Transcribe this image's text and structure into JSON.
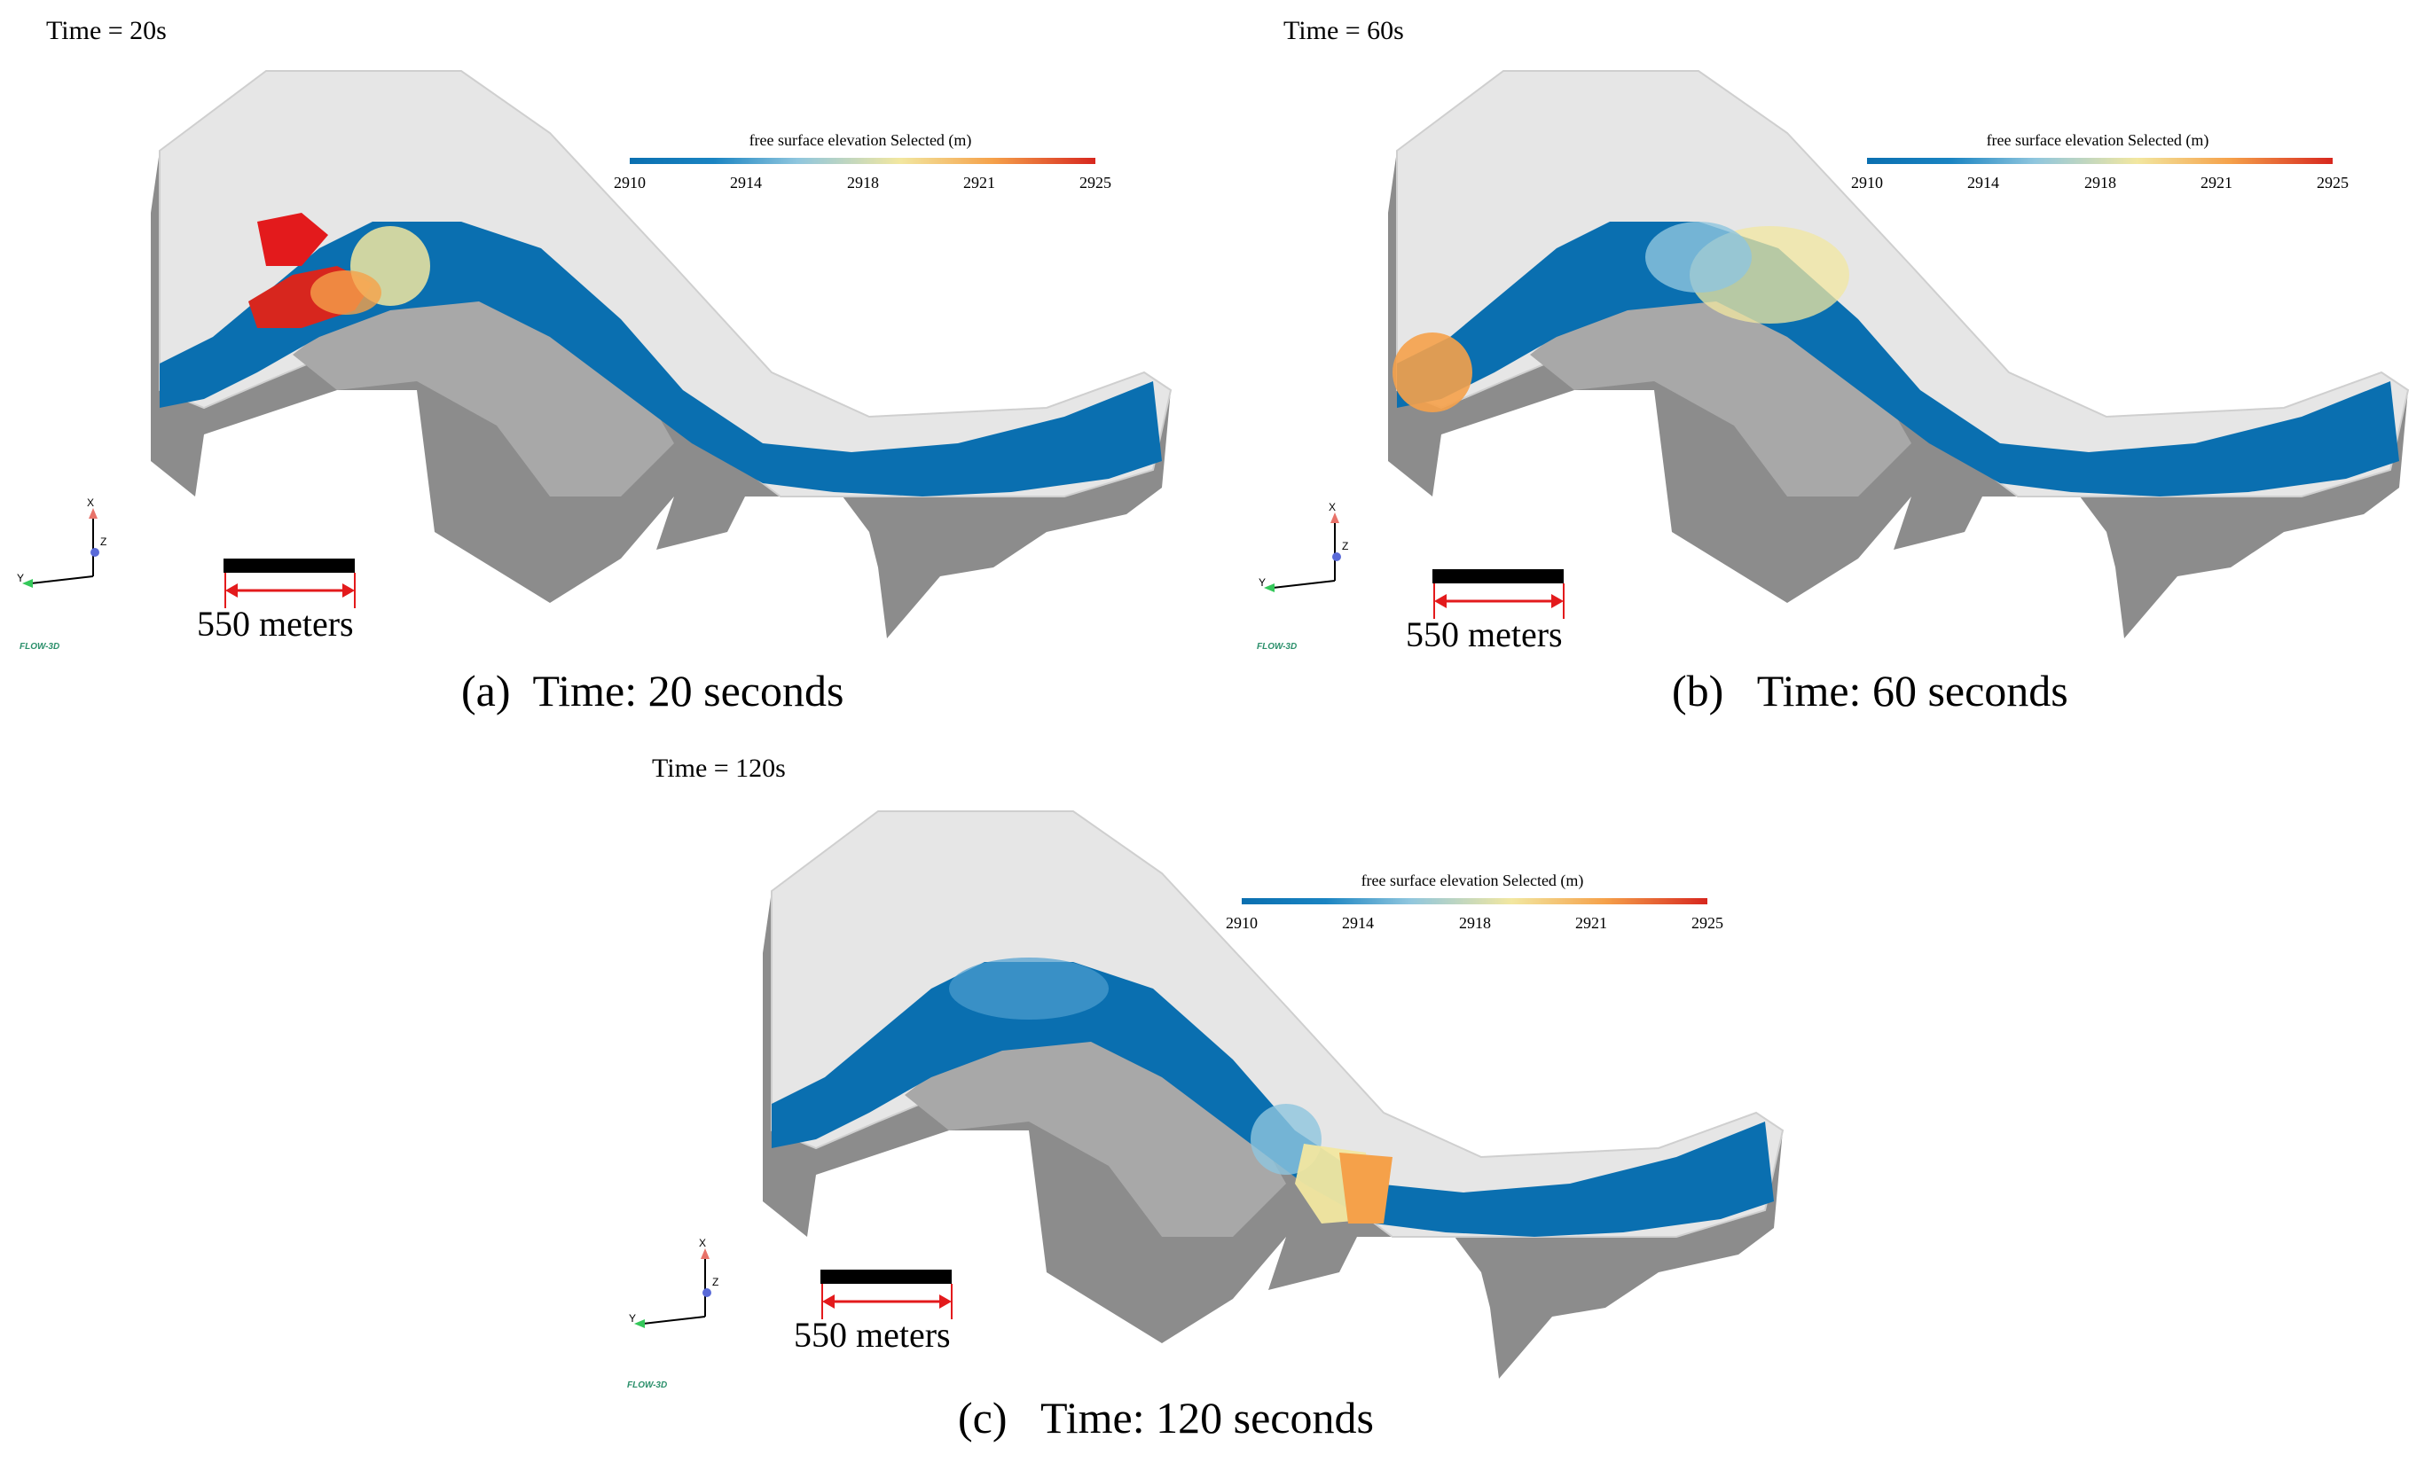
{
  "panels": [
    {
      "time_label": "Time = 20s",
      "caption": "(a)  Time: 20 seconds",
      "legend": {
        "title": "free surface elevation Selected (m)",
        "ticks": [
          "2910",
          "2914",
          "2918",
          "2921",
          "2925"
        ]
      },
      "scale": "550 meters",
      "axes": {
        "x": "X",
        "y": "Y",
        "z": "Z"
      },
      "logo": "FLOW-3D"
    },
    {
      "time_label": "Time = 60s",
      "caption": "(b)   Time: 60 seconds",
      "legend": {
        "title": "free surface elevation Selected (m)",
        "ticks": [
          "2910",
          "2914",
          "2918",
          "2921",
          "2925"
        ]
      },
      "scale": "550 meters",
      "axes": {
        "x": "X",
        "y": "Y",
        "z": "Z"
      },
      "logo": "FLOW-3D"
    },
    {
      "time_label": "Time = 120s",
      "caption": "(c)   Time: 120 seconds",
      "legend": {
        "title": "free surface elevation Selected (m)",
        "ticks": [
          "2910",
          "2914",
          "2918",
          "2921",
          "2925"
        ]
      },
      "scale": "550 meters",
      "axes": {
        "x": "X",
        "y": "Y",
        "z": "Z"
      },
      "logo": "FLOW-3D"
    }
  ],
  "colors": {
    "water_low": "#0a6fb0",
    "water_high": "#d7261e",
    "terrain": "#e8e8e8",
    "base": "#8c8c8c"
  }
}
